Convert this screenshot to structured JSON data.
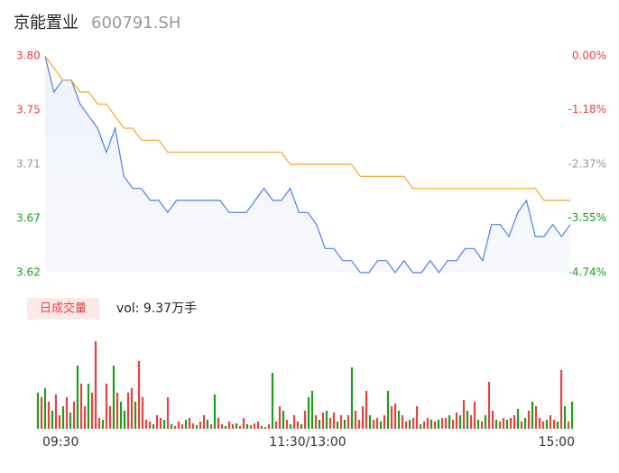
{
  "chart_data": [
    {
      "type": "line",
      "title": "京能置业",
      "subtitle": "600791.SH",
      "x": [
        0,
        4,
        8,
        12,
        16,
        20,
        24,
        28,
        32,
        36,
        40,
        44,
        48,
        52,
        56,
        60,
        64,
        68,
        72,
        76,
        80,
        84,
        88,
        92,
        96,
        100,
        104,
        108,
        112,
        116,
        120,
        124,
        128,
        132,
        136,
        140,
        144,
        148,
        152,
        156,
        160,
        164,
        168,
        172,
        176,
        180,
        184,
        188,
        192,
        196,
        200,
        204,
        208,
        212,
        216,
        220,
        224,
        228,
        232,
        236,
        240
      ],
      "xlim": [
        0,
        240
      ],
      "xticks": [
        {
          "value": 0,
          "label": "09:30"
        },
        {
          "value": 120,
          "label": "11:30/13:00"
        },
        {
          "value": 240,
          "label": "15:00"
        }
      ],
      "series": [
        {
          "name": "price",
          "color": "#4a80e8",
          "values": [
            3.8,
            3.77,
            3.78,
            3.78,
            3.76,
            3.75,
            3.74,
            3.72,
            3.74,
            3.7,
            3.69,
            3.69,
            3.68,
            3.68,
            3.67,
            3.68,
            3.68,
            3.68,
            3.68,
            3.68,
            3.68,
            3.67,
            3.67,
            3.67,
            3.68,
            3.69,
            3.68,
            3.68,
            3.69,
            3.67,
            3.67,
            3.66,
            3.64,
            3.64,
            3.63,
            3.63,
            3.62,
            3.62,
            3.63,
            3.63,
            3.62,
            3.63,
            3.62,
            3.62,
            3.63,
            3.62,
            3.63,
            3.63,
            3.64,
            3.64,
            3.63,
            3.66,
            3.66,
            3.65,
            3.67,
            3.68,
            3.65,
            3.65,
            3.66,
            3.65,
            3.66
          ]
        },
        {
          "name": "average",
          "color": "#f5a623",
          "values": [
            3.8,
            3.79,
            3.78,
            3.78,
            3.77,
            3.77,
            3.76,
            3.76,
            3.75,
            3.74,
            3.74,
            3.73,
            3.73,
            3.73,
            3.72,
            3.72,
            3.72,
            3.72,
            3.72,
            3.72,
            3.72,
            3.72,
            3.72,
            3.72,
            3.72,
            3.72,
            3.72,
            3.72,
            3.71,
            3.71,
            3.71,
            3.71,
            3.71,
            3.71,
            3.71,
            3.71,
            3.7,
            3.7,
            3.7,
            3.7,
            3.7,
            3.7,
            3.69,
            3.69,
            3.69,
            3.69,
            3.69,
            3.69,
            3.69,
            3.69,
            3.69,
            3.69,
            3.69,
            3.69,
            3.69,
            3.69,
            3.69,
            3.68,
            3.68,
            3.68,
            3.68
          ]
        }
      ],
      "ylim": [
        3.62,
        3.8
      ],
      "yticks": [
        {
          "value": 3.8,
          "label": "3.80"
        },
        {
          "value": 3.755,
          "label": "3.75"
        },
        {
          "value": 3.71,
          "label": "3.71"
        },
        {
          "value": 3.665,
          "label": "3.67"
        },
        {
          "value": 3.62,
          "label": "3.62"
        }
      ],
      "y2lim": [
        -4.74,
        0
      ],
      "y2ticks": [
        {
          "value": 0,
          "label": "0.00%"
        },
        {
          "value": -1.18,
          "label": "-1.18%"
        },
        {
          "value": -2.37,
          "label": "-2.37%"
        },
        {
          "value": -3.55,
          "label": "-3.55%"
        },
        {
          "value": -4.74,
          "label": "-4.74%"
        }
      ],
      "up_color": "#e8413f",
      "down_color": "#1aa01a",
      "flat_color": "#999999",
      "grid": false
    },
    {
      "type": "bar",
      "title": "日成交量",
      "annotation": "vol: 9.37万手",
      "values": [
        400,
        350,
        450,
        300,
        200,
        380,
        150,
        250,
        350,
        180,
        300,
        700,
        500,
        250,
        500,
        400,
        970,
        120,
        100,
        500,
        250,
        700,
        400,
        300,
        200,
        400,
        450,
        300,
        750,
        350,
        100,
        80,
        50,
        150,
        120,
        100,
        350,
        50,
        30,
        80,
        50,
        100,
        120,
        60,
        40,
        80,
        150,
        100,
        50,
        380,
        120,
        50,
        30,
        80,
        50,
        60,
        30,
        120,
        50,
        40,
        60,
        80,
        30,
        20,
        50,
        620,
        80,
        250,
        200,
        100,
        50,
        150,
        80,
        50,
        200,
        350,
        420,
        150,
        100,
        180,
        200,
        120,
        180,
        80,
        150,
        100,
        150,
        680,
        200,
        100,
        250,
        420,
        150,
        100,
        120,
        80,
        150,
        420,
        250,
        280,
        200,
        150,
        80,
        100,
        120,
        250,
        50,
        80,
        120,
        100,
        80,
        100,
        120,
        120,
        150,
        100,
        180,
        150,
        320,
        200,
        150,
        300,
        100,
        80,
        150,
        520,
        200,
        100,
        80,
        120,
        100,
        120,
        150,
        220,
        80,
        120,
        200,
        300,
        250,
        120,
        80,
        100,
        150,
        100,
        80,
        650,
        250,
        80,
        300
      ],
      "up": [
        false,
        true,
        false,
        true,
        false,
        true,
        true,
        false,
        true,
        false,
        true,
        false,
        true,
        true,
        false,
        true,
        true,
        true,
        false,
        true,
        true,
        false,
        true,
        false,
        false,
        true,
        true,
        false,
        true,
        true,
        true,
        true,
        false,
        true,
        true,
        false,
        true,
        false,
        true,
        true,
        true,
        false,
        true,
        true,
        false,
        true,
        true,
        false,
        true,
        false,
        true,
        true,
        false,
        true,
        true,
        false,
        true,
        true,
        false,
        true,
        true,
        true,
        false,
        true,
        true,
        false,
        true,
        true,
        false,
        true,
        false,
        true,
        true,
        false,
        true,
        false,
        false,
        true,
        false,
        true,
        false,
        true,
        true,
        false,
        true,
        false,
        true,
        false,
        true,
        true,
        true,
        true,
        false,
        true,
        true,
        false,
        true,
        false,
        true,
        true,
        false,
        true,
        true,
        false,
        true,
        true,
        false,
        true,
        true,
        false,
        true,
        false,
        true,
        true,
        false,
        true,
        true,
        false,
        true,
        false,
        true,
        true,
        false,
        true,
        false,
        true,
        true,
        false,
        true,
        true,
        false,
        true,
        true,
        false,
        true,
        false,
        true,
        false,
        true,
        true,
        true,
        false,
        true,
        true,
        false,
        true,
        false,
        true,
        false
      ],
      "ylim": [
        0,
        970
      ],
      "up_color": "#e8413f",
      "down_color": "#1aa01a"
    }
  ]
}
